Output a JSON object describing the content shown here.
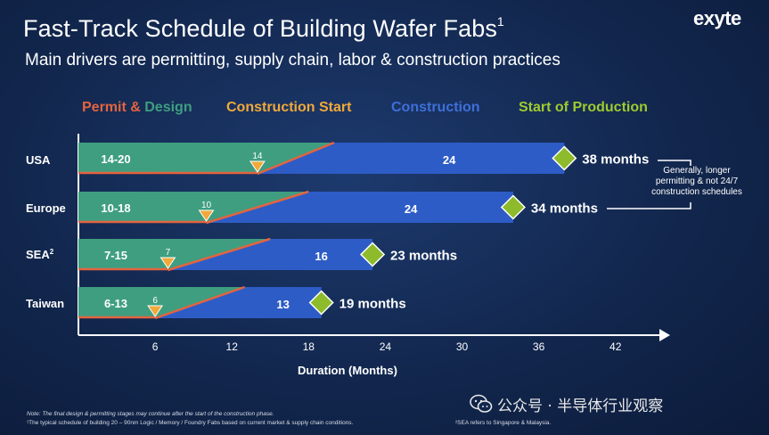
{
  "header": {
    "title": "Fast-Track Schedule of Building Wafer Fabs",
    "title_sup": "1",
    "subtitle": "Main drivers are permitting, supply chain, labor & construction practices",
    "logo": "exyte"
  },
  "legend": {
    "permit_part1": "Permit",
    "permit_amp": " & ",
    "permit_part2": "Design",
    "construction_start": "Construction Start",
    "construction": "Construction",
    "start_of_production": "Start of Production"
  },
  "colors": {
    "permit": "#3f9e80",
    "permit_line": "#e3643f",
    "construction": "#2e5cc6",
    "construction_start": "#f0a93a",
    "production": "#8dbb2b"
  },
  "chart_data": {
    "type": "bar",
    "orientation": "horizontal-stacked-gantt",
    "categories": [
      "USA",
      "Europe",
      "SEA",
      "Taiwan"
    ],
    "category_sup": [
      "",
      "",
      "2",
      ""
    ],
    "rows": [
      {
        "name": "USA",
        "permit_label": "14-20",
        "permit_max": 20,
        "construction_start": 14,
        "construction_label": "24",
        "construction": 24,
        "total": 38,
        "total_label": "38 months"
      },
      {
        "name": "Europe",
        "permit_label": "10-18",
        "permit_max": 18,
        "construction_start": 10,
        "construction_label": "24",
        "construction": 24,
        "total": 34,
        "total_label": "34 months"
      },
      {
        "name": "SEA",
        "permit_label": "7-15",
        "permit_max": 15,
        "construction_start": 7,
        "construction_label": "16",
        "construction": 16,
        "total": 23,
        "total_label": "23 months"
      },
      {
        "name": "Taiwan",
        "permit_label": "6-13",
        "permit_max": 13,
        "construction_start": 6,
        "construction_label": "13",
        "construction": 13,
        "total": 19,
        "total_label": "19 months"
      }
    ],
    "xlabel": "Duration (Months)",
    "xticks": [
      6,
      12,
      18,
      24,
      30,
      36,
      42
    ],
    "xlim": [
      0,
      46
    ],
    "legend_position": "top"
  },
  "annotations": {
    "right_note": "Generally, longer permitting & not 24/7 construction schedules"
  },
  "footnotes": {
    "note": "Note: The final design & permitting stages may continue after the start of the construction phase.",
    "fn1": "¹The typical schedule of building 20 – 90nm Logic / Memory / Foundry Fabs based on current market & supply chain conditions.",
    "fn2": "²SEA refers to Singapore & Malaysia."
  },
  "watermark": {
    "text": "公众号 · 半导体行业观察"
  }
}
